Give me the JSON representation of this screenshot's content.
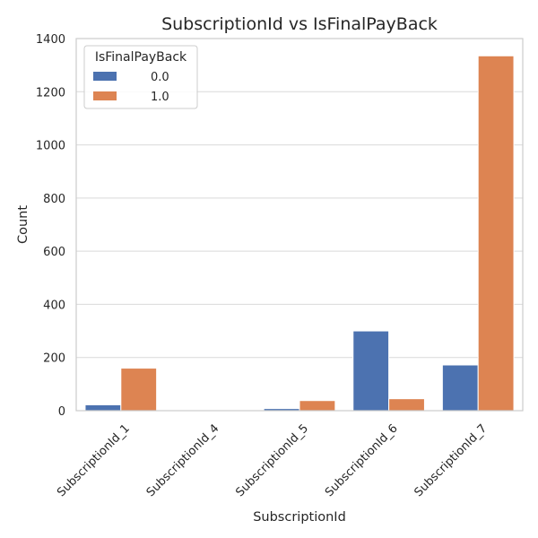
{
  "chart_data": {
    "type": "bar",
    "title": "SubscriptionId vs IsFinalPayBack",
    "xlabel": "SubscriptionId",
    "ylabel": "Count",
    "categories": [
      "SubscriptionId_1",
      "SubscriptionId_4",
      "SubscriptionId_5",
      "SubscriptionId_6",
      "SubscriptionId_7"
    ],
    "ylim": [
      0,
      1400
    ],
    "yticks": [
      0,
      200,
      400,
      600,
      800,
      1000,
      1200,
      1400
    ],
    "grid": "horizontal",
    "legend": {
      "title": "IsFinalPayBack",
      "placement": "top-left"
    },
    "series": [
      {
        "name": "0.0",
        "color": "#4c72b0",
        "values": [
          22,
          0,
          8,
          300,
          172
        ]
      },
      {
        "name": "1.0",
        "color": "#dd8452",
        "values": [
          160,
          0,
          38,
          45,
          1335
        ]
      }
    ]
  }
}
